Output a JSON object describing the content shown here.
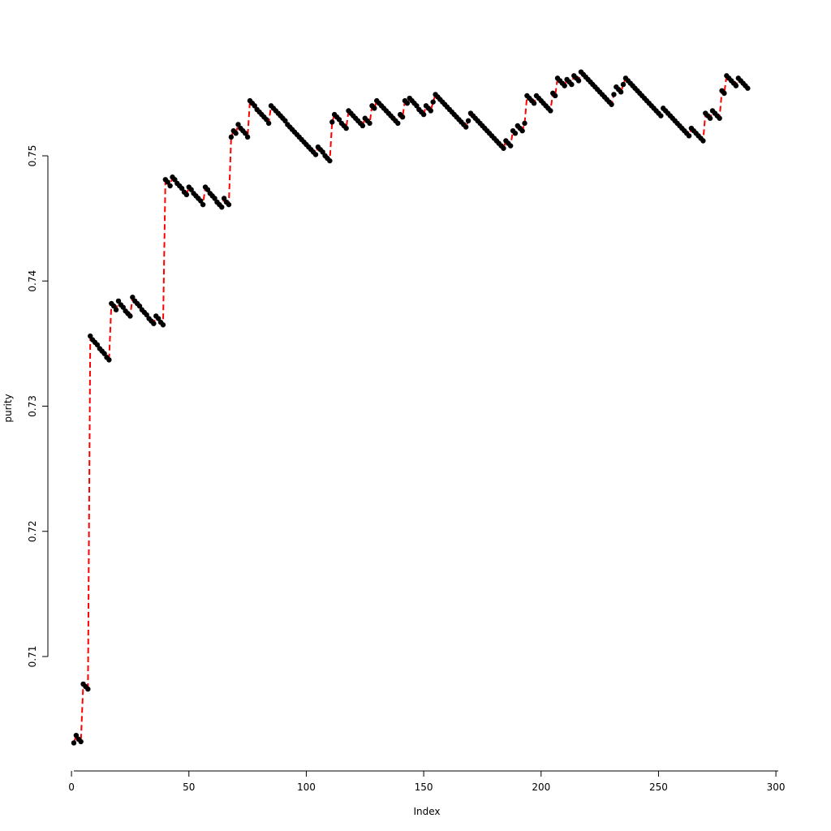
{
  "chart_data": {
    "type": "line",
    "title": "",
    "xlabel": "Index",
    "ylabel": "purity",
    "xlim": [
      1,
      300
    ],
    "ylim": [
      0.703,
      0.7565
    ],
    "x_ticks": [
      0,
      50,
      100,
      150,
      200,
      250,
      300
    ],
    "y_ticks": [
      0.71,
      0.72,
      0.73,
      0.74,
      0.75
    ],
    "x_tick_labels": [
      "0",
      "50",
      "100",
      "150",
      "200",
      "250",
      "300"
    ],
    "y_tick_labels": [
      "0.71",
      "0.72",
      "0.73",
      "0.74",
      "0.75"
    ],
    "grid": false,
    "legend": "none",
    "colors": {
      "points": "#000000",
      "line": "#ff0000"
    },
    "line_style": "dashed",
    "marker": "filled-circle",
    "series": [
      {
        "values": [
          0.7031,
          0.7037,
          0.7034,
          0.7032,
          0.7078,
          0.7076,
          0.7074,
          0.7356,
          0.7353,
          0.7351,
          0.7349,
          0.7346,
          0.7344,
          0.7342,
          0.7339,
          0.7337,
          0.7382,
          0.738,
          0.7377,
          0.7384,
          0.7381,
          0.7379,
          0.7376,
          0.7374,
          0.7372,
          0.7387,
          0.7384,
          0.7382,
          0.738,
          0.7377,
          0.7375,
          0.7373,
          0.737,
          0.7368,
          0.7366,
          0.7372,
          0.737,
          0.7367,
          0.7365,
          0.7481,
          0.7479,
          0.7476,
          0.7483,
          0.7481,
          0.7478,
          0.7476,
          0.7474,
          0.7471,
          0.7469,
          0.7475,
          0.7473,
          0.747,
          0.7468,
          0.7466,
          0.7464,
          0.7461,
          0.7475,
          0.7473,
          0.747,
          0.7468,
          0.7466,
          0.7463,
          0.7461,
          0.7459,
          0.7466,
          0.7463,
          0.7461,
          0.7515,
          0.752,
          0.7518,
          0.7525,
          0.7522,
          0.752,
          0.7518,
          0.7515,
          0.7544,
          0.7542,
          0.754,
          0.7537,
          0.7535,
          0.7533,
          0.7531,
          0.7529,
          0.7526,
          0.754,
          0.7538,
          0.7536,
          0.7534,
          0.7532,
          0.753,
          0.7528,
          0.7525,
          0.7523,
          0.7521,
          0.7519,
          0.7517,
          0.7515,
          0.7513,
          0.7511,
          0.7509,
          0.7507,
          0.7505,
          0.7503,
          0.7501,
          0.7507,
          0.7505,
          0.7503,
          0.75,
          0.7498,
          0.7496,
          0.7527,
          0.7533,
          0.7531,
          0.7529,
          0.7526,
          0.7524,
          0.7522,
          0.7536,
          0.7534,
          0.7532,
          0.753,
          0.7528,
          0.7526,
          0.7524,
          0.753,
          0.7528,
          0.7526,
          0.754,
          0.7538,
          0.7544,
          0.7542,
          0.754,
          0.7538,
          0.7536,
          0.7534,
          0.7532,
          0.753,
          0.7528,
          0.7526,
          0.7533,
          0.7531,
          0.7544,
          0.7542,
          0.7546,
          0.7544,
          0.7542,
          0.754,
          0.7537,
          0.7535,
          0.7533,
          0.754,
          0.7538,
          0.7536,
          0.7543,
          0.7549,
          0.7547,
          0.7545,
          0.7543,
          0.7541,
          0.7539,
          0.7537,
          0.7535,
          0.7533,
          0.7531,
          0.7529,
          0.7527,
          0.7525,
          0.7523,
          0.7528,
          0.7534,
          0.7532,
          0.753,
          0.7528,
          0.7526,
          0.7524,
          0.7522,
          0.752,
          0.7518,
          0.7516,
          0.7514,
          0.7512,
          0.751,
          0.7508,
          0.7506,
          0.7512,
          0.751,
          0.7508,
          0.752,
          0.7518,
          0.7524,
          0.7522,
          0.752,
          0.7526,
          0.7548,
          0.7546,
          0.7544,
          0.7542,
          0.7548,
          0.7546,
          0.7544,
          0.7542,
          0.754,
          0.7538,
          0.7536,
          0.755,
          0.7548,
          0.7562,
          0.756,
          0.7558,
          0.7556,
          0.7561,
          0.7559,
          0.7557,
          0.7564,
          0.7562,
          0.756,
          0.7567,
          0.7565,
          0.7563,
          0.7561,
          0.7559,
          0.7557,
          0.7555,
          0.7553,
          0.7551,
          0.7549,
          0.7547,
          0.7545,
          0.7543,
          0.7541,
          0.7549,
          0.7555,
          0.7553,
          0.7551,
          0.7557,
          0.7562,
          0.756,
          0.7558,
          0.7556,
          0.7554,
          0.7552,
          0.755,
          0.7548,
          0.7546,
          0.7544,
          0.7542,
          0.754,
          0.7538,
          0.7536,
          0.7534,
          0.7532,
          0.7538,
          0.7536,
          0.7534,
          0.7532,
          0.753,
          0.7528,
          0.7526,
          0.7524,
          0.7522,
          0.752,
          0.7518,
          0.7516,
          0.7522,
          0.752,
          0.7518,
          0.7516,
          0.7514,
          0.7512,
          0.7534,
          0.7532,
          0.753,
          0.7536,
          0.7534,
          0.7532,
          0.753,
          0.7552,
          0.755,
          0.7564,
          0.7562,
          0.756,
          0.7558,
          0.7556,
          0.7562,
          0.756,
          0.7558,
          0.7556,
          0.7554
        ]
      }
    ]
  }
}
